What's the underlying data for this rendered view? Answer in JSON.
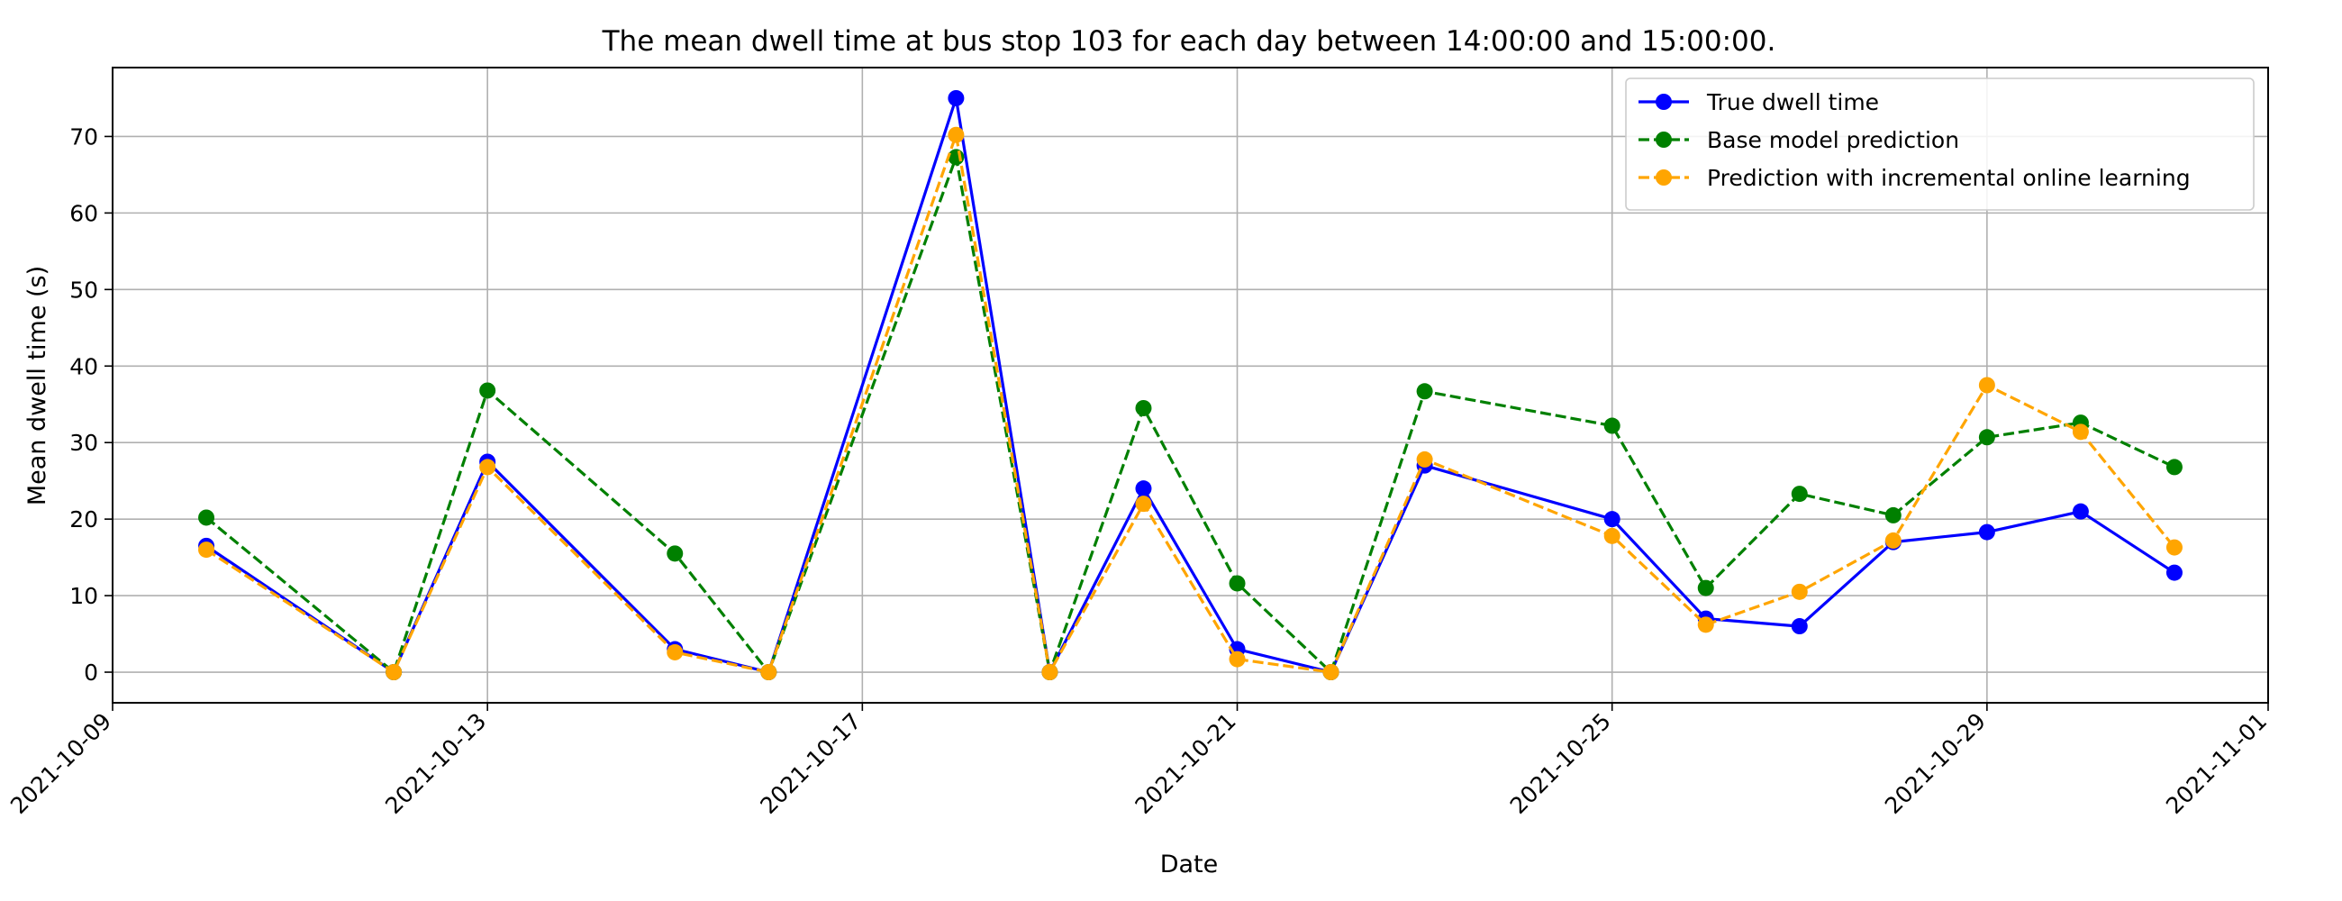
{
  "chart_data": {
    "type": "line",
    "title": "The mean dwell time at bus stop 103 for each day between 14:00:00 and 15:00:00.",
    "xlabel": "Date",
    "ylabel": "Mean dwell time (s)",
    "x_axis_type": "date",
    "xlim": [
      "2021-10-09",
      "2021-11-01"
    ],
    "ylim": [
      -4,
      79
    ],
    "xticks": [
      "2021-10-09",
      "2021-10-13",
      "2021-10-17",
      "2021-10-21",
      "2021-10-25",
      "2021-10-29",
      "2021-11-01"
    ],
    "yticks": [
      0,
      10,
      20,
      30,
      40,
      50,
      60,
      70
    ],
    "grid": true,
    "legend_position": "upper-right",
    "x": [
      "2021-10-10",
      "2021-10-12",
      "2021-10-13",
      "2021-10-15",
      "2021-10-16",
      "2021-10-18",
      "2021-10-19",
      "2021-10-20",
      "2021-10-21",
      "2021-10-22",
      "2021-10-23",
      "2021-10-25",
      "2021-10-26",
      "2021-10-27",
      "2021-10-28",
      "2021-10-29",
      "2021-10-30",
      "2021-10-31"
    ],
    "series": [
      {
        "name": "True dwell time",
        "color": "#0000ff",
        "linestyle": "solid",
        "values": [
          16.5,
          0,
          27.5,
          3,
          0,
          75,
          0,
          24,
          3,
          0,
          27,
          20,
          7,
          6,
          17,
          18.3,
          21,
          13
        ]
      },
      {
        "name": "Base model prediction",
        "color": "#008000",
        "linestyle": "dashed",
        "values": [
          20.2,
          0,
          36.8,
          15.5,
          0,
          67.3,
          0,
          34.5,
          11.6,
          0,
          36.7,
          32.2,
          11,
          23.3,
          20.5,
          30.7,
          32.6,
          26.8
        ]
      },
      {
        "name": "Prediction with incremental online learning",
        "color": "#ffa500",
        "linestyle": "dashed",
        "values": [
          16,
          0,
          26.8,
          2.6,
          0,
          70.2,
          0,
          22,
          1.7,
          0,
          27.8,
          17.8,
          6.2,
          10.5,
          17.2,
          37.5,
          31.4,
          16.3
        ]
      }
    ]
  }
}
